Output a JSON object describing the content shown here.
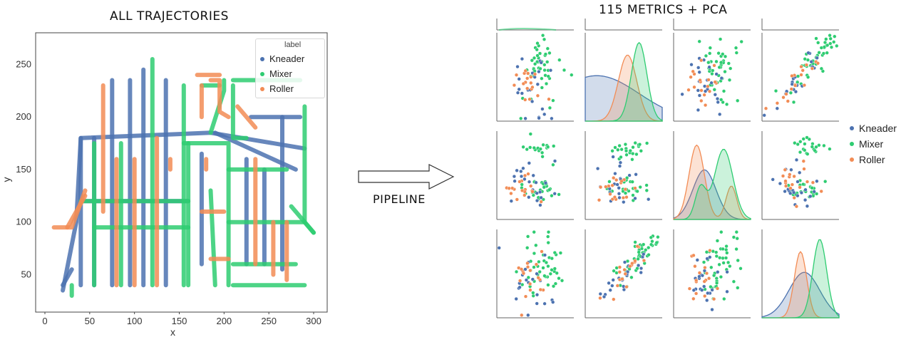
{
  "titles": {
    "left": "ALL TRAJECTORIES",
    "right": "115 METRICS + PCA",
    "pipeline": "PIPELINE"
  },
  "colors": {
    "Kneader": "#4c72b0",
    "Mixer": "#2ecc71",
    "Roller": "#f28c55"
  },
  "trajectory_plot": {
    "xlabel": "x",
    "ylabel": "y",
    "x_ticks": [
      "0",
      "50",
      "100",
      "150",
      "200",
      "250",
      "300"
    ],
    "y_ticks": [
      "50",
      "100",
      "150",
      "200",
      "250"
    ],
    "legend": {
      "title": "label",
      "items": [
        "Kneader",
        "Mixer",
        "Roller"
      ]
    }
  },
  "pairplot": {
    "legend": [
      "Kneader",
      "Mixer",
      "Roller"
    ],
    "grid": "4x4 (top row cropped)"
  }
}
